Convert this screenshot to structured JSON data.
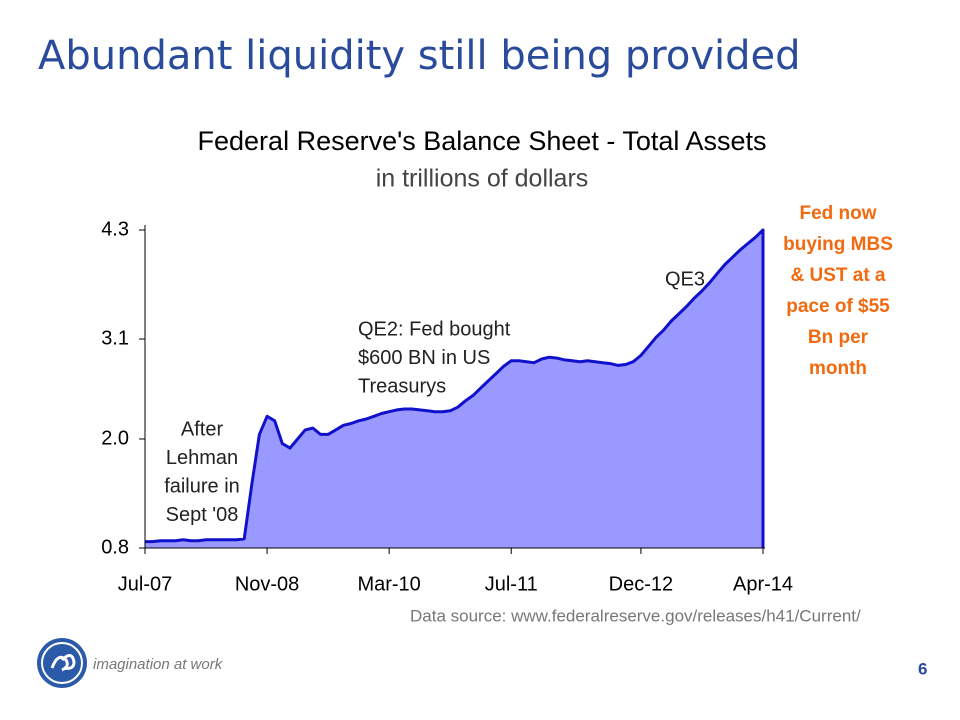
{
  "slide": {
    "title": "Abundant liquidity still being provided",
    "tagline": "imagination at work",
    "page": "6"
  },
  "chart_data": {
    "type": "area",
    "title": "Federal Reserve's Balance Sheet - Total Assets",
    "subtitle": "in trillions of dollars",
    "categories": [
      "Jul-07",
      null,
      null,
      null,
      null,
      null,
      null,
      null,
      null,
      null,
      null,
      null,
      null,
      null,
      null,
      null,
      "Nov-08",
      null,
      null,
      null,
      null,
      null,
      null,
      null,
      null,
      null,
      null,
      null,
      null,
      null,
      null,
      null,
      "Mar-10",
      null,
      null,
      null,
      null,
      null,
      null,
      null,
      null,
      null,
      null,
      null,
      null,
      null,
      null,
      null,
      "Jul-11",
      null,
      null,
      null,
      null,
      null,
      null,
      null,
      null,
      null,
      null,
      null,
      null,
      null,
      null,
      null,
      null,
      "Dec-12",
      null,
      null,
      null,
      null,
      null,
      null,
      null,
      null,
      null,
      null,
      null,
      null,
      null,
      null,
      null,
      "Apr-14"
    ],
    "values": [
      0.87,
      0.87,
      0.88,
      0.88,
      0.88,
      0.89,
      0.88,
      0.88,
      0.89,
      0.89,
      0.89,
      0.89,
      0.89,
      0.9,
      1.5,
      2.05,
      2.25,
      2.2,
      1.95,
      1.9,
      2.0,
      2.1,
      2.12,
      2.05,
      2.05,
      2.1,
      2.15,
      2.17,
      2.2,
      2.22,
      2.25,
      2.28,
      2.3,
      2.32,
      2.33,
      2.33,
      2.32,
      2.31,
      2.3,
      2.3,
      2.31,
      2.35,
      2.42,
      2.48,
      2.56,
      2.64,
      2.72,
      2.8,
      2.86,
      2.86,
      2.85,
      2.84,
      2.88,
      2.9,
      2.89,
      2.87,
      2.86,
      2.85,
      2.86,
      2.85,
      2.84,
      2.83,
      2.81,
      2.82,
      2.85,
      2.92,
      3.02,
      3.12,
      3.2,
      3.3,
      3.38,
      3.46,
      3.55,
      3.63,
      3.72,
      3.82,
      3.92,
      4.0,
      4.08,
      4.15,
      4.22,
      4.3
    ],
    "color": "#9999ff",
    "line_color": "#1111cc",
    "ylim": [
      0.8,
      4.3
    ],
    "yticks": [
      0.8,
      {
        "value": 2.0,
        "label": "2.0"
      },
      3.1,
      4.3
    ],
    "annotations": [
      {
        "lines": [
          "After",
          "Lehman",
          "failure in",
          "Sept '08"
        ]
      },
      {
        "lines": [
          "QE2: Fed bought",
          "$600 BN in US",
          "Treasurys"
        ]
      },
      {
        "lines": [
          "QE3"
        ]
      }
    ],
    "note": [
      "Fed now",
      "buying MBS",
      "& UST at a",
      "pace of $55",
      "Bn per",
      "month"
    ],
    "source": "Data source: www.federalreserve.gov/releases/h41/Current/"
  }
}
